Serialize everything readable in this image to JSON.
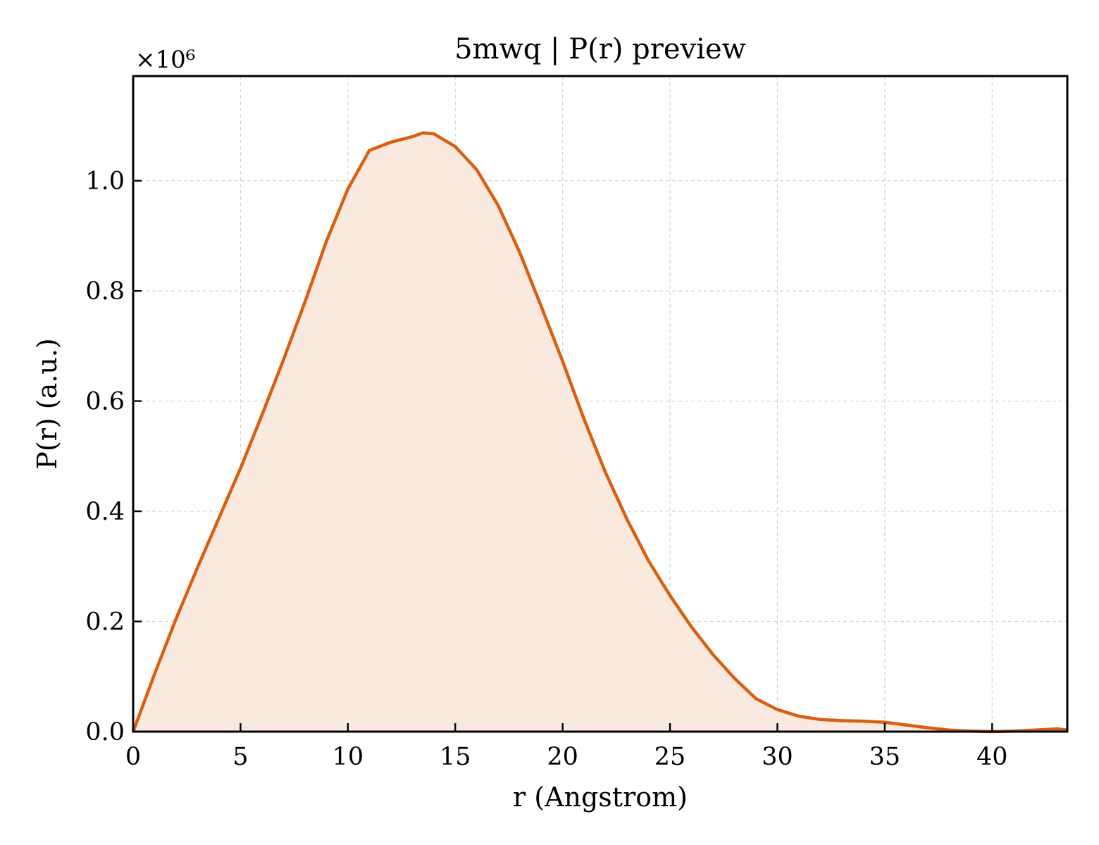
{
  "chart_data": {
    "type": "area",
    "title": "5mwq | P(r) preview",
    "xlabel": "r (Angstrom)",
    "ylabel": "P(r) (a.u.)",
    "y_offset_label": "×10⁶",
    "xlim": [
      0,
      43.5
    ],
    "ylim": [
      0,
      1.19
    ],
    "xticks": [
      0,
      5,
      10,
      15,
      20,
      25,
      30,
      35,
      40
    ],
    "xtick_labels": [
      "0",
      "5",
      "10",
      "15",
      "20",
      "25",
      "30",
      "35",
      "40"
    ],
    "yticks": [
      0.0,
      0.2,
      0.4,
      0.6,
      0.8,
      1.0
    ],
    "ytick_labels": [
      "0.0",
      "0.2",
      "0.4",
      "0.6",
      "0.8",
      "1.0"
    ],
    "grid": true,
    "colors": {
      "line": "#d95f0e",
      "fill": "#f9e9df"
    },
    "series": [
      {
        "x": [
          0,
          1,
          2,
          3,
          4,
          5,
          6,
          7,
          8,
          9,
          10,
          11,
          12,
          13,
          13.5,
          14,
          15,
          16,
          17,
          18,
          19,
          20,
          21,
          22,
          23,
          24,
          25,
          26,
          27,
          28,
          29,
          30,
          31,
          32,
          33,
          34,
          35,
          36,
          37,
          38,
          39,
          40,
          41,
          42,
          43,
          43.5
        ],
        "y": [
          0.0,
          0.105,
          0.205,
          0.298,
          0.388,
          0.478,
          0.575,
          0.675,
          0.78,
          0.89,
          0.985,
          1.055,
          1.07,
          1.08,
          1.087,
          1.085,
          1.062,
          1.02,
          0.955,
          0.87,
          0.772,
          0.672,
          0.567,
          0.47,
          0.385,
          0.31,
          0.247,
          0.19,
          0.14,
          0.097,
          0.06,
          0.04,
          0.028,
          0.022,
          0.02,
          0.019,
          0.017,
          0.012,
          0.007,
          0.003,
          0.001,
          0.0,
          0.001,
          0.003,
          0.005,
          0.003
        ]
      }
    ]
  }
}
